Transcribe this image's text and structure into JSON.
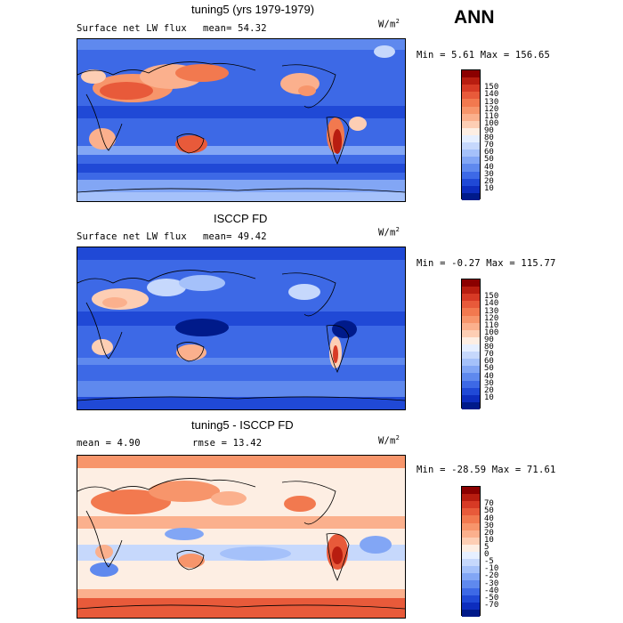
{
  "season": "ANN",
  "panels": [
    {
      "title": "tuning5 (yrs 1979-1979)",
      "left_text": "Surface net LW flux",
      "stat_text": "mean=  54.32",
      "unit": "W/m",
      "unit_sup": "2",
      "minmax": "Min =   5.61 Max = 156.65",
      "colors": [
        "#8b0000",
        "#b81d10",
        "#d73a25",
        "#e85a3a",
        "#f2794f",
        "#f7956b",
        "#fbb08d",
        "#fdceb4",
        "#fdeee3",
        "#e6efff",
        "#c6d8fc",
        "#a5c1fa",
        "#82a6f5",
        "#5f89ee",
        "#3d69e6",
        "#2049d6",
        "#0d2dbe",
        "#001a8a"
      ],
      "ticks": [
        "150",
        "140",
        "130",
        "120",
        "110",
        "100",
        "90",
        "80",
        "70",
        "60",
        "50",
        "40",
        "30",
        "20",
        "10"
      ]
    },
    {
      "title": "ISCCP FD",
      "left_text": "Surface net LW flux",
      "stat_text": "mean=  49.42",
      "unit": "W/m",
      "unit_sup": "2",
      "minmax": "Min =  -0.27 Max = 115.77",
      "colors": [
        "#8b0000",
        "#b81d10",
        "#d73a25",
        "#e85a3a",
        "#f2794f",
        "#f7956b",
        "#fbb08d",
        "#fdceb4",
        "#fdeee3",
        "#e6efff",
        "#c6d8fc",
        "#a5c1fa",
        "#82a6f5",
        "#5f89ee",
        "#3d69e6",
        "#2049d6",
        "#0d2dbe",
        "#001a8a"
      ],
      "ticks": [
        "150",
        "140",
        "130",
        "120",
        "110",
        "100",
        "90",
        "80",
        "70",
        "60",
        "50",
        "40",
        "30",
        "20",
        "10"
      ]
    },
    {
      "title": "tuning5 - ISCCP FD",
      "left_text": "mean =   4.90",
      "stat_text": "rmse =  13.42",
      "unit": "W/m",
      "unit_sup": "2",
      "minmax": "Min = -28.59 Max =  71.61",
      "colors": [
        "#8b0000",
        "#b81d10",
        "#d73a25",
        "#e85a3a",
        "#f2794f",
        "#f7956b",
        "#fbb08d",
        "#fdceb4",
        "#fdeee3",
        "#e6efff",
        "#c6d8fc",
        "#a5c1fa",
        "#82a6f5",
        "#5f89ee",
        "#3d69e6",
        "#2049d6",
        "#0d2dbe",
        "#001a8a"
      ],
      "ticks": [
        "70",
        "50",
        "40",
        "30",
        "20",
        "10",
        "5",
        "0",
        "-5",
        "-10",
        "-20",
        "-30",
        "-40",
        "-50",
        "-70"
      ]
    }
  ]
}
